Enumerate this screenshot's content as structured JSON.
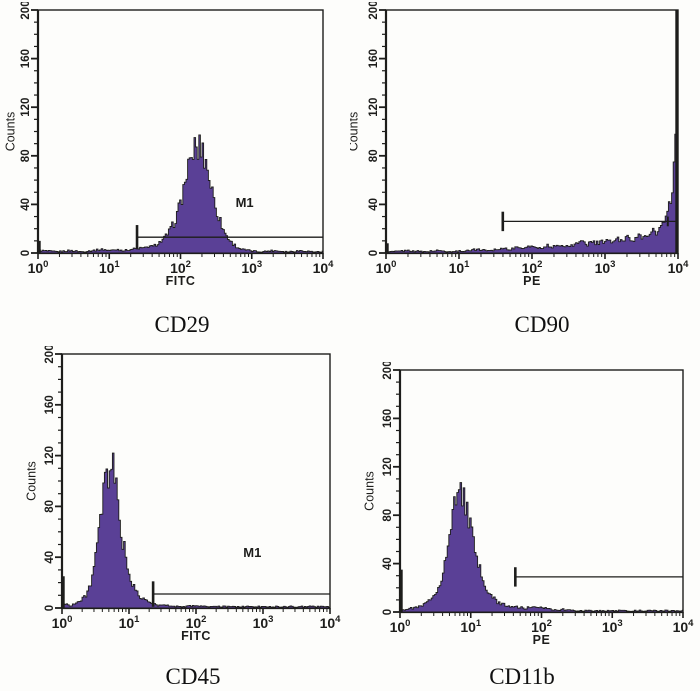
{
  "colors": {
    "histogram_fill": "#5a4096",
    "line": "#1d1d1b",
    "background": "#fdfdfb",
    "title_color": "#111111"
  },
  "axes": {
    "y_label": "Counts",
    "y_tick_labels": [
      "0",
      "40",
      "80",
      "120",
      "160",
      "200"
    ],
    "y_tick_values": [
      0,
      40,
      80,
      120,
      160,
      200
    ],
    "y_minor_step": 10,
    "y_max": 200,
    "x_tick_base": "10",
    "x_tick_exponents": [
      "0",
      "1",
      "2",
      "3",
      "4"
    ]
  },
  "chart_data": [
    {
      "type": "area",
      "title": "CD29",
      "xlabel": "FITC",
      "ylabel": "Counts",
      "xscale": "log10",
      "xlim_exponents": [
        0,
        4
      ],
      "ylim": [
        0,
        200
      ],
      "grid": false,
      "gate": {
        "from_log": 1.39,
        "to_log": 4.0,
        "y_counts": 13,
        "tick_half_counts": 10,
        "label": "M1",
        "label_log_x": 2.9,
        "label_counts": 38
      },
      "left_edge_spike_counts": 10,
      "right_edge_spike_counts": 0,
      "points_logx_counts": [
        [
          0.02,
          2
        ],
        [
          0.25,
          1
        ],
        [
          0.45,
          2
        ],
        [
          0.6,
          1
        ],
        [
          0.75,
          2
        ],
        [
          0.9,
          3
        ],
        [
          1.0,
          2
        ],
        [
          1.1,
          3
        ],
        [
          1.2,
          2
        ],
        [
          1.3,
          3
        ],
        [
          1.4,
          4
        ],
        [
          1.5,
          4
        ],
        [
          1.55,
          6
        ],
        [
          1.6,
          5
        ],
        [
          1.65,
          7
        ],
        [
          1.7,
          9
        ],
        [
          1.75,
          11
        ],
        [
          1.8,
          15
        ],
        [
          1.85,
          19
        ],
        [
          1.9,
          25
        ],
        [
          1.95,
          33
        ],
        [
          2.0,
          44
        ],
        [
          2.05,
          57
        ],
        [
          2.1,
          72
        ],
        [
          2.13,
          68
        ],
        [
          2.16,
          84
        ],
        [
          2.2,
          88
        ],
        [
          2.24,
          83
        ],
        [
          2.27,
          90
        ],
        [
          2.3,
          85
        ],
        [
          2.33,
          78
        ],
        [
          2.37,
          70
        ],
        [
          2.4,
          60
        ],
        [
          2.45,
          47
        ],
        [
          2.5,
          35
        ],
        [
          2.55,
          26
        ],
        [
          2.6,
          18
        ],
        [
          2.65,
          13
        ],
        [
          2.7,
          9
        ],
        [
          2.78,
          5
        ],
        [
          2.85,
          3
        ],
        [
          2.95,
          2
        ],
        [
          3.1,
          1
        ],
        [
          3.3,
          2
        ],
        [
          3.5,
          1
        ],
        [
          3.7,
          2
        ],
        [
          3.85,
          1
        ],
        [
          4.0,
          1
        ]
      ]
    },
    {
      "type": "area",
      "title": "CD90",
      "xlabel": "PE",
      "ylabel": "Counts",
      "xscale": "log10",
      "xlim_exponents": [
        0,
        4
      ],
      "ylim": [
        0,
        200
      ],
      "grid": false,
      "gate": {
        "from_log": 1.6,
        "to_log": 4.0,
        "y_counts": 26,
        "tick_half_counts": 8,
        "label": null,
        "end_tick_log": 3.86,
        "end_tick_half_counts": 4
      },
      "left_edge_spike_counts": 8,
      "right_edge_spike_counts": 200,
      "points_logx_counts": [
        [
          0.05,
          1
        ],
        [
          0.3,
          2
        ],
        [
          0.5,
          1
        ],
        [
          0.7,
          2
        ],
        [
          0.9,
          1
        ],
        [
          1.1,
          2
        ],
        [
          1.25,
          3
        ],
        [
          1.4,
          2
        ],
        [
          1.5,
          3
        ],
        [
          1.6,
          4
        ],
        [
          1.7,
          3
        ],
        [
          1.8,
          5
        ],
        [
          1.9,
          4
        ],
        [
          2.0,
          6
        ],
        [
          2.1,
          4
        ],
        [
          2.2,
          6
        ],
        [
          2.3,
          5
        ],
        [
          2.4,
          7
        ],
        [
          2.5,
          5
        ],
        [
          2.6,
          8
        ],
        [
          2.7,
          10
        ],
        [
          2.75,
          7
        ],
        [
          2.8,
          9
        ],
        [
          2.9,
          8
        ],
        [
          3.0,
          10
        ],
        [
          3.1,
          9
        ],
        [
          3.15,
          12
        ],
        [
          3.2,
          10
        ],
        [
          3.3,
          13
        ],
        [
          3.4,
          11
        ],
        [
          3.45,
          14
        ],
        [
          3.5,
          12
        ],
        [
          3.55,
          16
        ],
        [
          3.6,
          14
        ],
        [
          3.65,
          18
        ],
        [
          3.7,
          16
        ],
        [
          3.75,
          21
        ],
        [
          3.8,
          25
        ],
        [
          3.85,
          32
        ],
        [
          3.9,
          45
        ],
        [
          3.93,
          62
        ],
        [
          3.95,
          85
        ],
        [
          3.97,
          115
        ],
        [
          3.99,
          160
        ],
        [
          4.0,
          162
        ]
      ]
    },
    {
      "type": "area",
      "title": "CD45",
      "xlabel": "FITC",
      "ylabel": "Counts",
      "xscale": "log10",
      "xlim_exponents": [
        0,
        4
      ],
      "ylim": [
        0,
        200
      ],
      "grid": false,
      "gate": {
        "from_log": 1.36,
        "to_log": 4.0,
        "y_counts": 11,
        "tick_half_counts": 10,
        "label": "M1",
        "label_log_x": 2.84,
        "label_counts": 40
      },
      "left_edge_spike_counts": 25,
      "right_edge_spike_counts": 0,
      "points_logx_counts": [
        [
          0.05,
          3
        ],
        [
          0.12,
          2
        ],
        [
          0.2,
          4
        ],
        [
          0.28,
          6
        ],
        [
          0.33,
          9
        ],
        [
          0.38,
          14
        ],
        [
          0.43,
          22
        ],
        [
          0.48,
          35
        ],
        [
          0.52,
          50
        ],
        [
          0.56,
          66
        ],
        [
          0.6,
          84
        ],
        [
          0.63,
          95
        ],
        [
          0.66,
          106
        ],
        [
          0.68,
          100
        ],
        [
          0.7,
          114
        ],
        [
          0.72,
          109
        ],
        [
          0.74,
          113
        ],
        [
          0.77,
          103
        ],
        [
          0.8,
          93
        ],
        [
          0.83,
          80
        ],
        [
          0.86,
          66
        ],
        [
          0.9,
          52
        ],
        [
          0.94,
          40
        ],
        [
          0.98,
          29
        ],
        [
          1.03,
          20
        ],
        [
          1.08,
          14
        ],
        [
          1.13,
          10
        ],
        [
          1.2,
          7
        ],
        [
          1.28,
          5
        ],
        [
          1.35,
          3
        ],
        [
          1.45,
          2
        ],
        [
          1.6,
          2
        ],
        [
          1.8,
          1
        ],
        [
          2.0,
          2
        ],
        [
          2.2,
          1
        ],
        [
          2.5,
          1
        ],
        [
          2.8,
          1
        ],
        [
          3.1,
          1
        ],
        [
          3.4,
          1
        ],
        [
          3.7,
          1
        ],
        [
          4.0,
          1
        ]
      ]
    },
    {
      "type": "area",
      "title": "CD11b",
      "xlabel": "PE",
      "ylabel": "Counts",
      "xscale": "log10",
      "xlim_exponents": [
        0,
        4
      ],
      "ylim": [
        0,
        200
      ],
      "grid": false,
      "gate": {
        "from_log": 1.63,
        "to_log": 4.0,
        "y_counts": 29,
        "tick_half_counts": 8,
        "label": null
      },
      "left_edge_spike_counts": 35,
      "right_edge_spike_counts": 0,
      "points_logx_counts": [
        [
          0.05,
          2
        ],
        [
          0.15,
          3
        ],
        [
          0.25,
          4
        ],
        [
          0.33,
          6
        ],
        [
          0.4,
          9
        ],
        [
          0.47,
          14
        ],
        [
          0.53,
          21
        ],
        [
          0.58,
          30
        ],
        [
          0.63,
          42
        ],
        [
          0.68,
          57
        ],
        [
          0.72,
          72
        ],
        [
          0.75,
          84
        ],
        [
          0.78,
          95
        ],
        [
          0.8,
          102
        ],
        [
          0.82,
          96
        ],
        [
          0.84,
          103
        ],
        [
          0.87,
          99
        ],
        [
          0.9,
          95
        ],
        [
          0.93,
          87
        ],
        [
          0.96,
          77
        ],
        [
          1.0,
          64
        ],
        [
          1.05,
          50
        ],
        [
          1.1,
          38
        ],
        [
          1.15,
          28
        ],
        [
          1.2,
          20
        ],
        [
          1.27,
          14
        ],
        [
          1.35,
          9
        ],
        [
          1.45,
          6
        ],
        [
          1.55,
          5
        ],
        [
          1.65,
          4
        ],
        [
          1.75,
          3
        ],
        [
          1.85,
          4
        ],
        [
          1.95,
          3
        ],
        [
          2.05,
          4
        ],
        [
          2.15,
          2
        ],
        [
          2.3,
          2
        ],
        [
          2.5,
          1
        ],
        [
          2.7,
          1
        ],
        [
          3.0,
          1
        ],
        [
          3.3,
          1
        ],
        [
          3.6,
          1
        ],
        [
          4.0,
          1
        ]
      ]
    }
  ]
}
